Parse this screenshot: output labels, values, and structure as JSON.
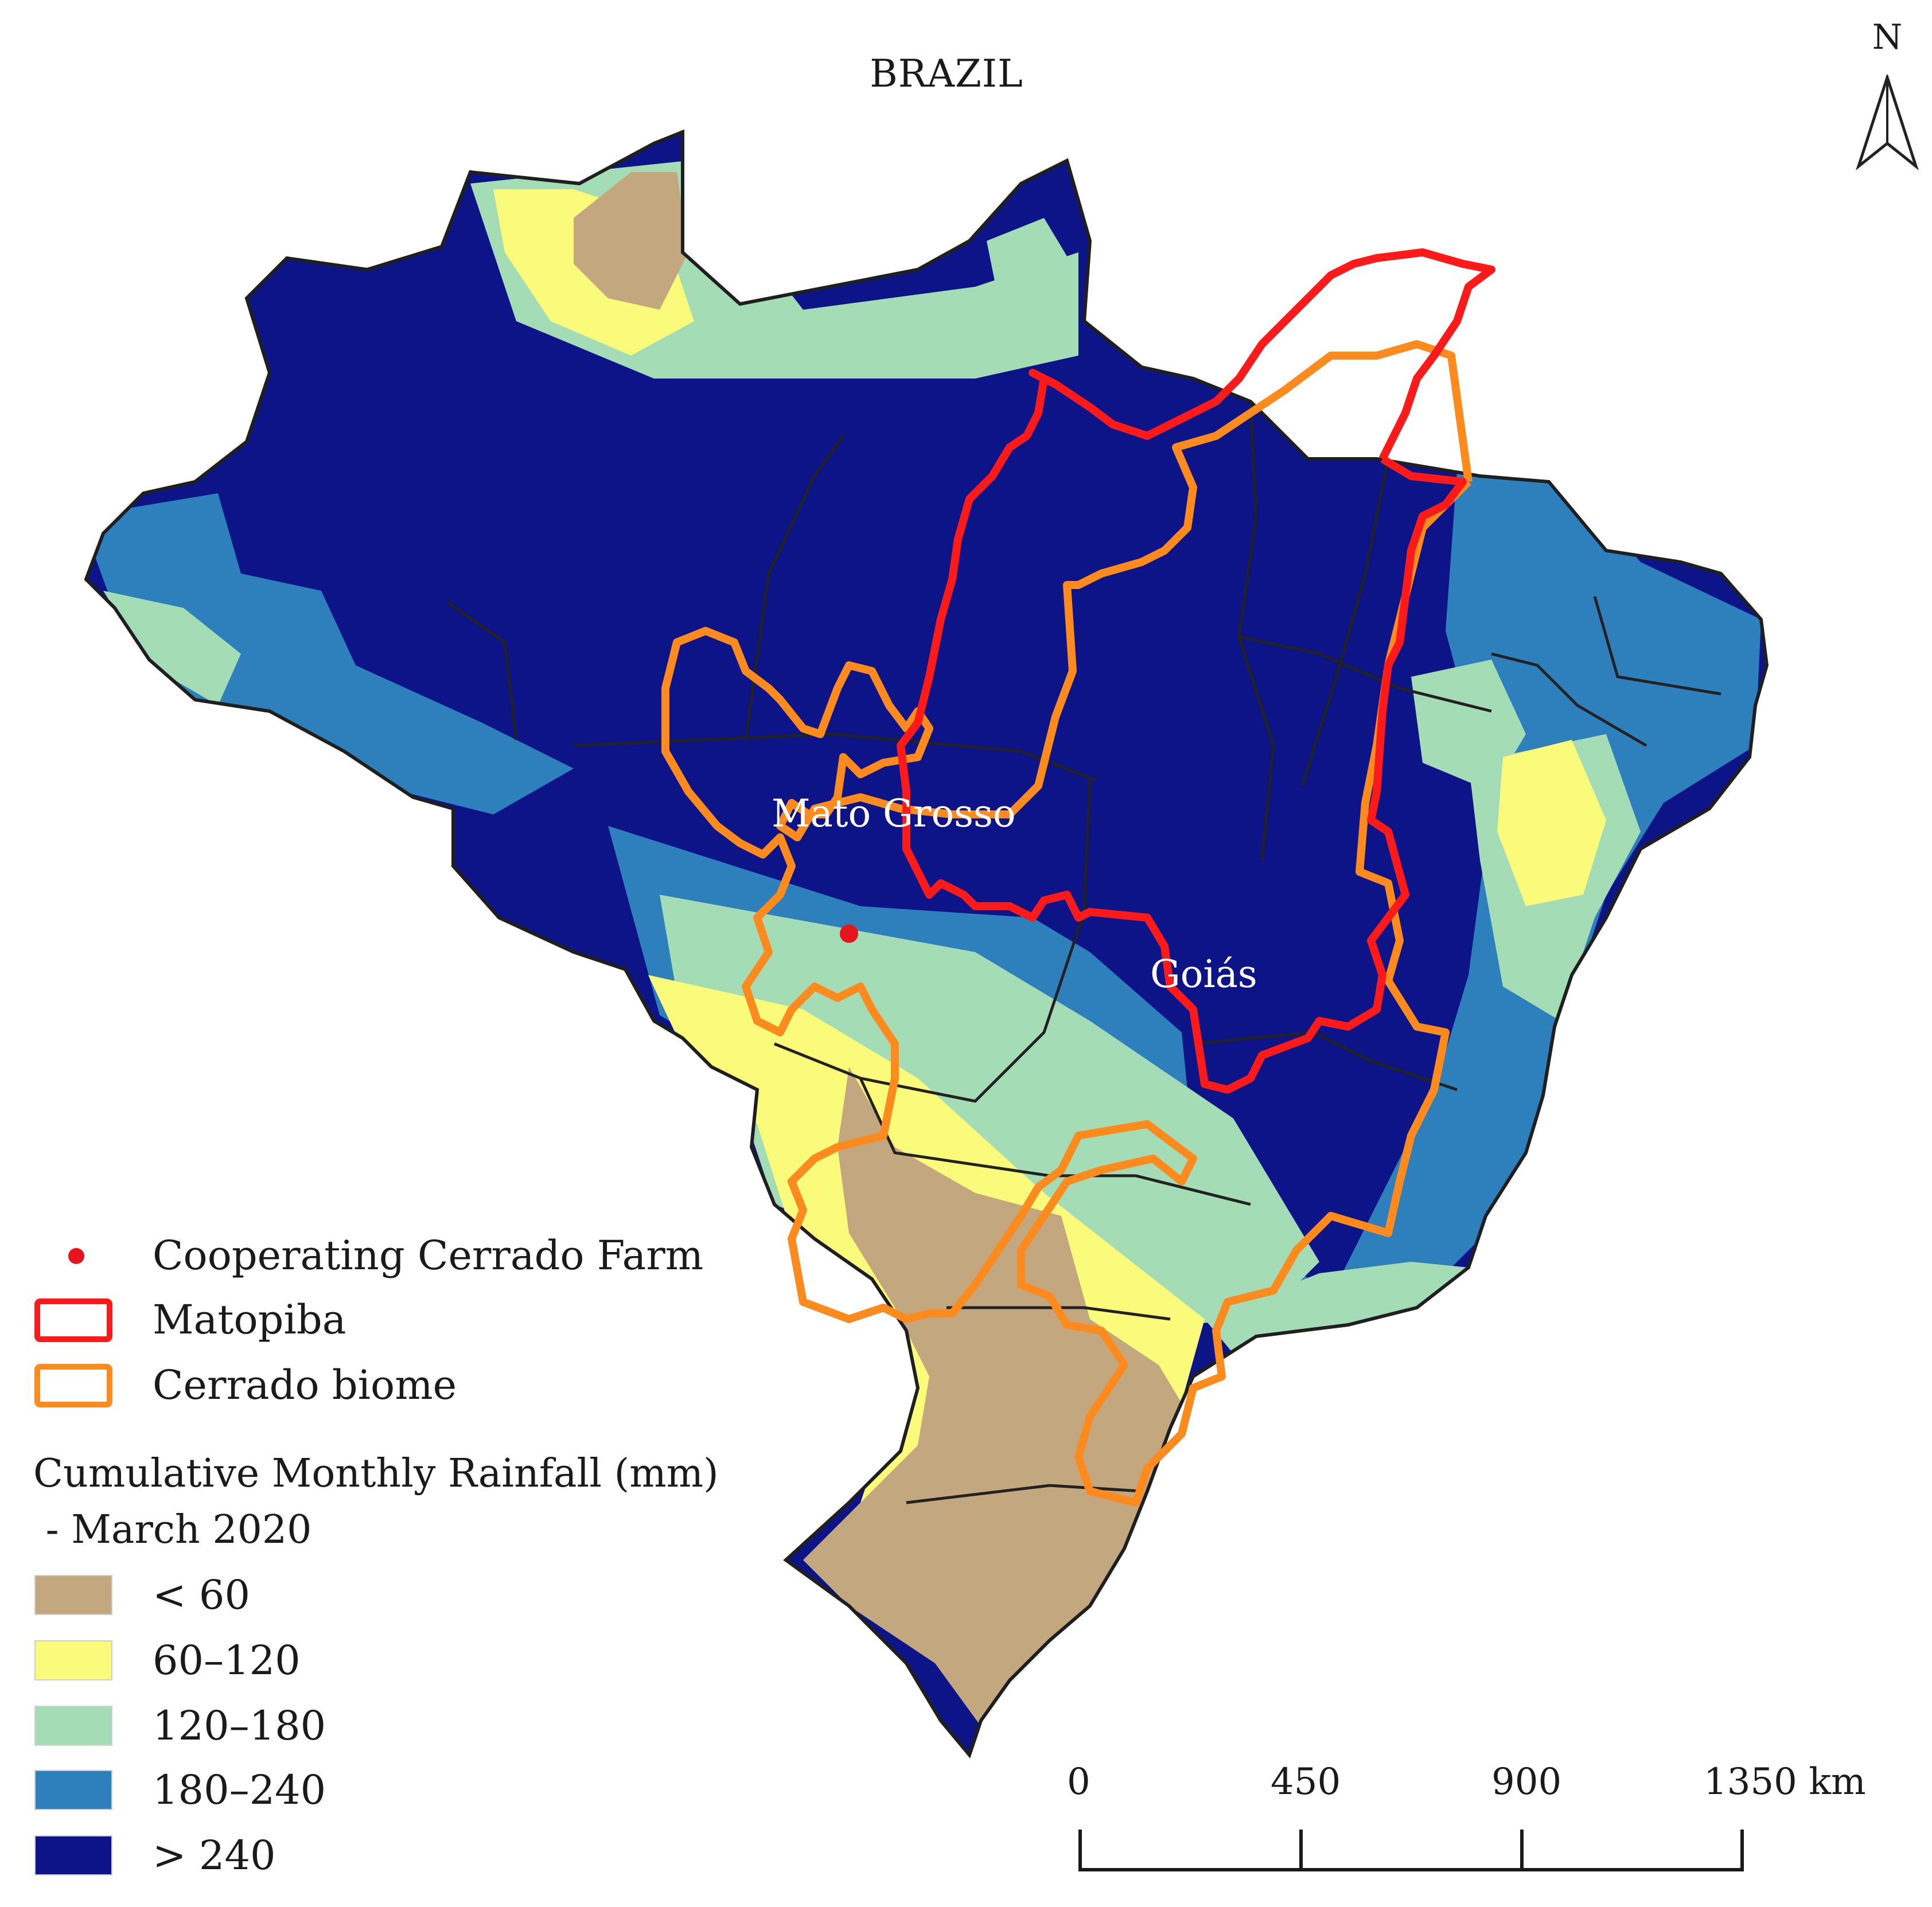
{
  "title": "BRAZIL",
  "north_arrow": {
    "label": "N",
    "icon": "north-arrow-icon"
  },
  "place_labels": {
    "mato_grosso": "Mato Grosso",
    "goias": "Goiás"
  },
  "legend": {
    "farm": {
      "label": "Cooperating Cerrado Farm",
      "color": "#e8141b"
    },
    "matopiba": {
      "label": "Matopiba",
      "color": "#ff1a1a"
    },
    "cerrado": {
      "label": "Cerrado biome",
      "color": "#ff8a1e"
    },
    "rainfall_heading_line1": "Cumulative Monthly Rainfall (mm)",
    "rainfall_heading_line2": " - March 2020",
    "classes": [
      {
        "label": "< 60",
        "color": "#c3a77e"
      },
      {
        "label": "60–120",
        "color": "#fbfb7b"
      },
      {
        "label": "120–180",
        "color": "#a4dcb6"
      },
      {
        "label": "180–240",
        "color": "#2e80bd"
      },
      {
        "label": "> 240",
        "color": "#0d1487"
      }
    ]
  },
  "scale_bar": {
    "ticks": [
      "0",
      "450",
      "900",
      "1350 km"
    ]
  }
}
